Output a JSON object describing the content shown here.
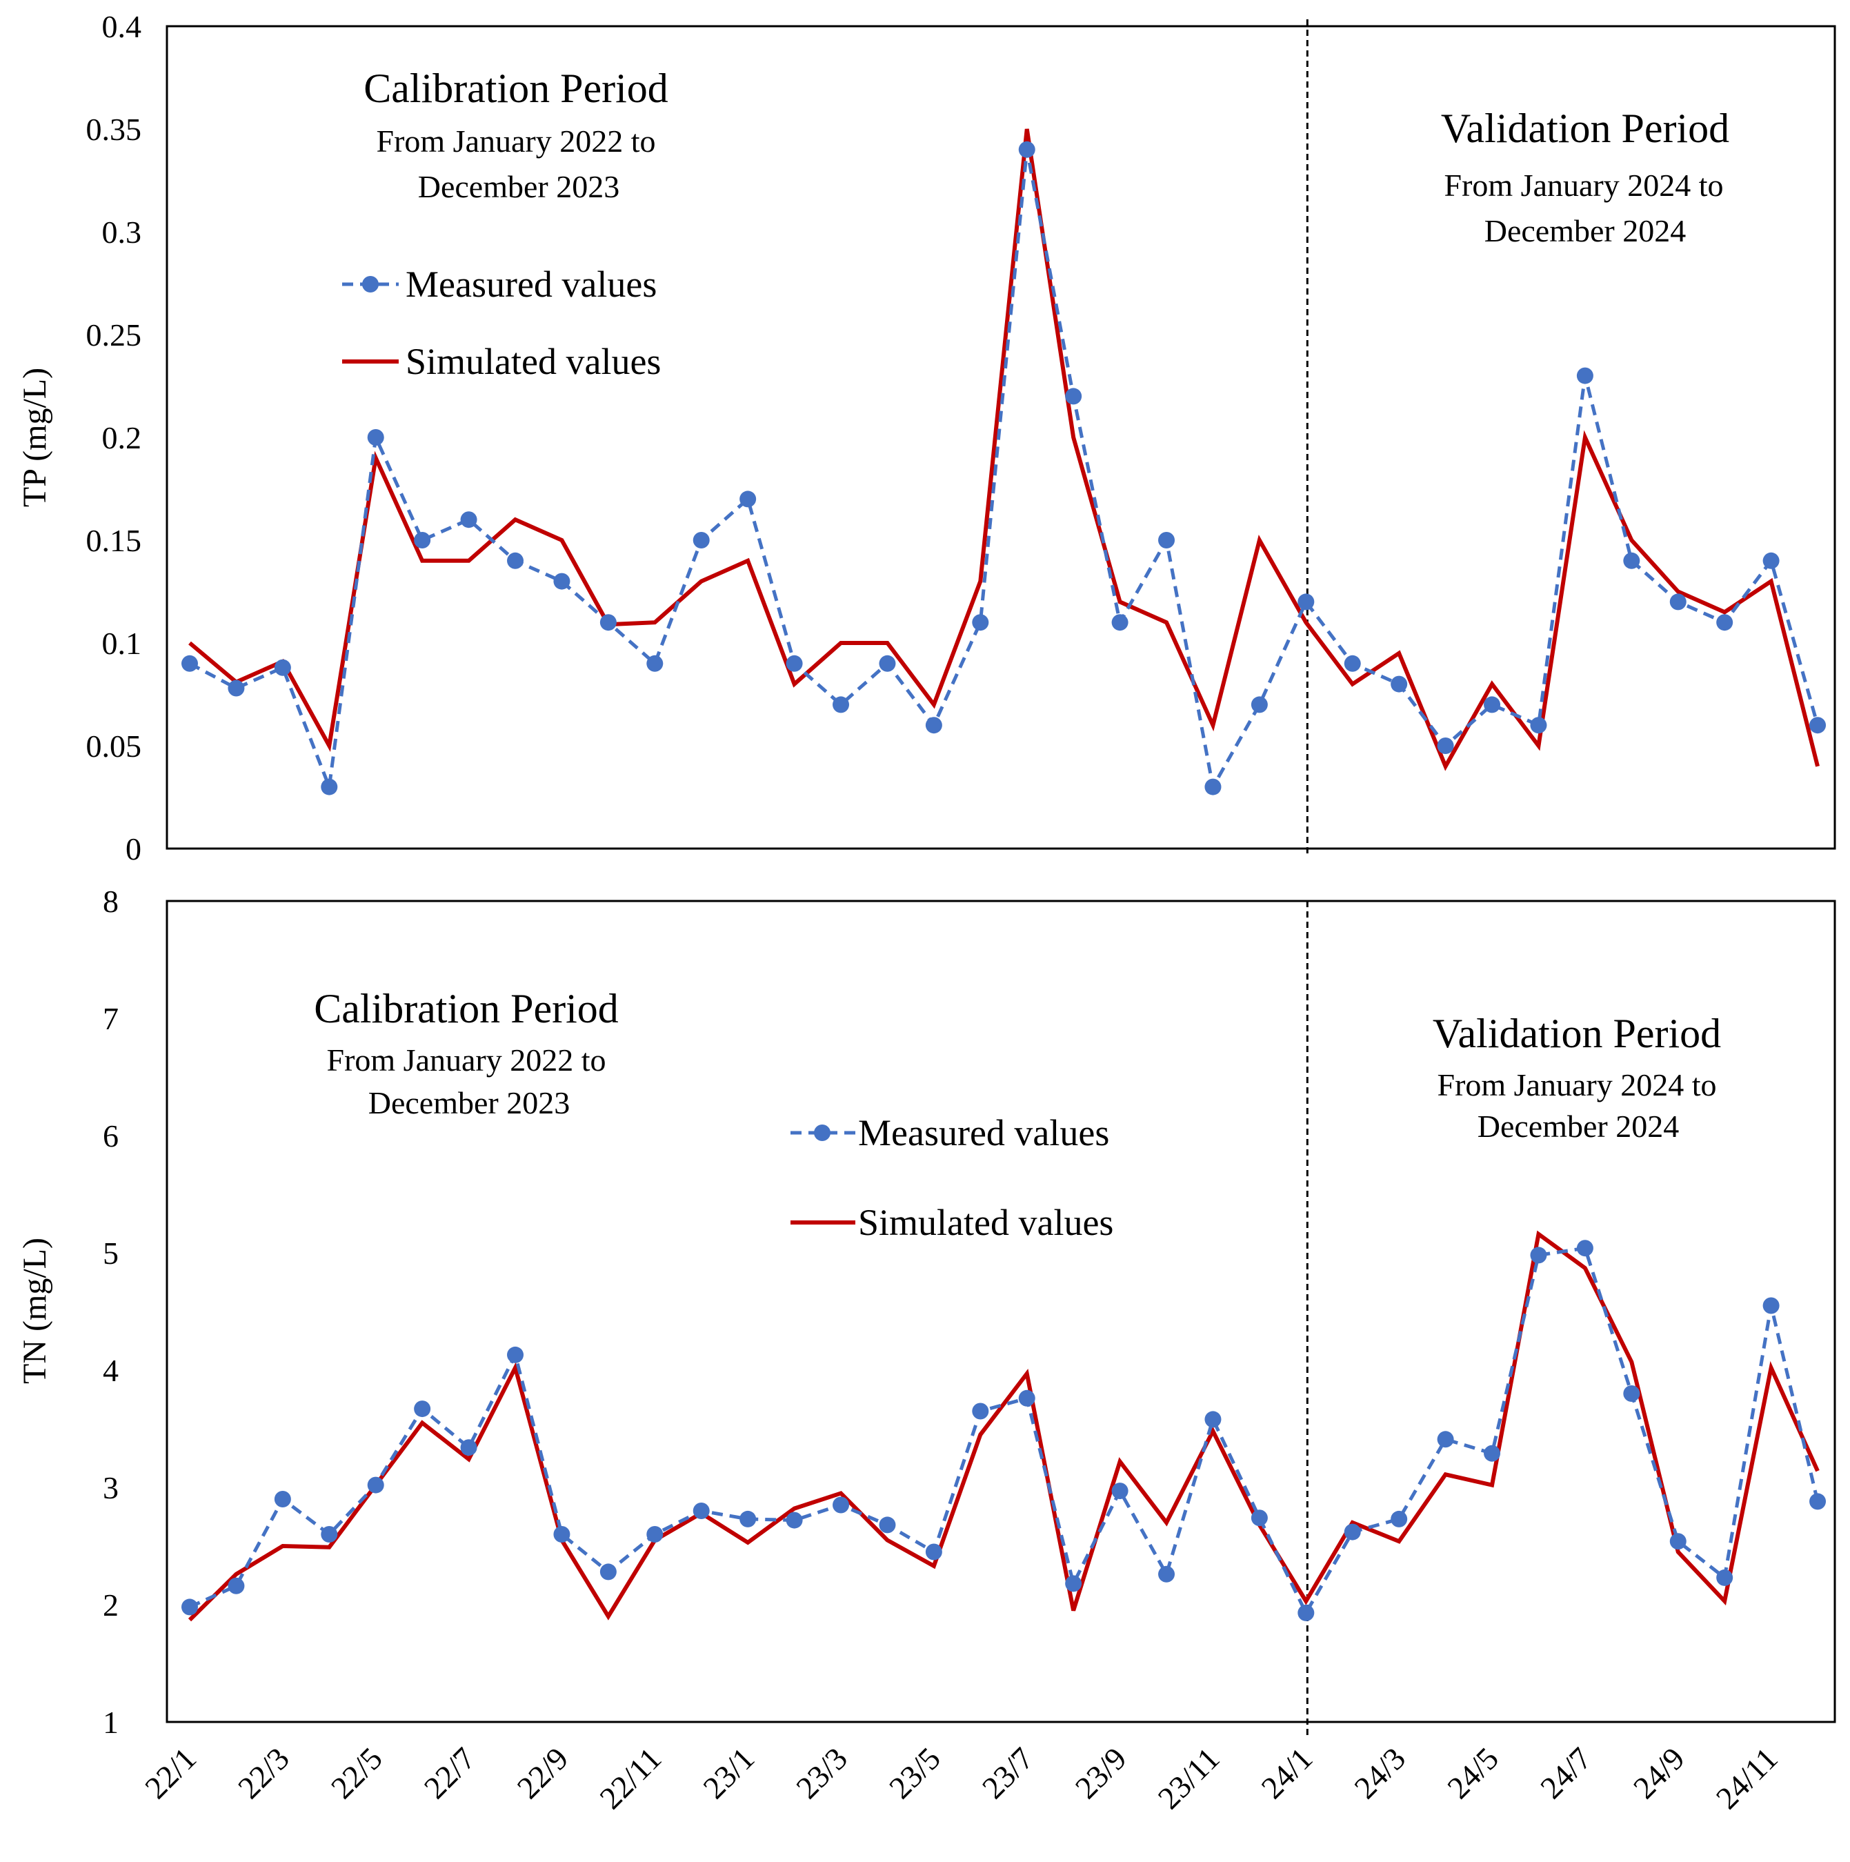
{
  "colors": {
    "measured": "#4472C4",
    "simulated": "#C00000",
    "axis": "#000000",
    "divider": "#000000"
  },
  "chart_data": [
    {
      "type": "line",
      "ylabel": "TP (mg/L)",
      "ylim": [
        0,
        0.4
      ],
      "yticks": [
        "0",
        "0.05",
        "0.1",
        "0.15",
        "0.2",
        "0.25",
        "0.3",
        "0.35",
        "0.4"
      ],
      "x": [
        "22/1",
        "22/2",
        "22/3",
        "22/4",
        "22/5",
        "22/6",
        "22/7",
        "22/8",
        "22/9",
        "22/10",
        "22/11",
        "22/12",
        "23/1",
        "23/2",
        "23/3",
        "23/4",
        "23/5",
        "23/6",
        "23/7",
        "23/8",
        "23/9",
        "23/10",
        "23/11",
        "23/12",
        "24/1",
        "24/2",
        "24/3",
        "24/4",
        "24/5",
        "24/6",
        "24/7",
        "24/8",
        "24/9",
        "24/10",
        "24/11",
        "24/12"
      ],
      "divider_at": "24/1",
      "series": [
        {
          "name": "Measured values",
          "style": "dashed-marker",
          "values": [
            0.09,
            0.078,
            0.088,
            0.03,
            0.2,
            0.15,
            0.16,
            0.14,
            0.13,
            0.11,
            0.09,
            0.15,
            0.17,
            0.09,
            0.07,
            0.09,
            0.06,
            0.11,
            0.34,
            0.22,
            0.11,
            0.15,
            0.03,
            0.07,
            0.12,
            0.09,
            0.08,
            0.05,
            0.07,
            0.06,
            0.23,
            0.14,
            0.12,
            0.11,
            0.14,
            0.06
          ]
        },
        {
          "name": "Simulated values",
          "style": "solid",
          "values": [
            0.1,
            0.081,
            0.091,
            0.05,
            0.19,
            0.14,
            0.14,
            0.16,
            0.15,
            0.109,
            0.11,
            0.13,
            0.14,
            0.08,
            0.1,
            0.1,
            0.07,
            0.13,
            0.35,
            0.2,
            0.12,
            0.11,
            0.06,
            0.15,
            0.11,
            0.08,
            0.095,
            0.04,
            0.08,
            0.05,
            0.2,
            0.15,
            0.125,
            0.115,
            0.13,
            0.04
          ]
        }
      ],
      "annotations": {
        "left_title": "Calibration Period",
        "left_sub1": "From January 2022 to",
        "left_sub2": "December 2023",
        "right_title": "Validation Period",
        "right_sub1": "From January 2024 to",
        "right_sub2": "December 2024"
      },
      "legend": [
        "Measured values",
        "Simulated values"
      ]
    },
    {
      "type": "line",
      "ylabel": "TN (mg/L)",
      "ylim": [
        1,
        8
      ],
      "yticks": [
        "1",
        "2",
        "3",
        "4",
        "5",
        "6",
        "7",
        "8"
      ],
      "x": [
        "22/1",
        "22/2",
        "22/3",
        "22/4",
        "22/5",
        "22/6",
        "22/7",
        "22/8",
        "22/9",
        "22/10",
        "22/11",
        "22/12",
        "23/1",
        "23/2",
        "23/3",
        "23/4",
        "23/5",
        "23/6",
        "23/7",
        "23/8",
        "23/9",
        "23/10",
        "23/11",
        "23/12",
        "24/1",
        "24/2",
        "24/3",
        "24/4",
        "24/5",
        "24/6",
        "24/7",
        "24/8",
        "24/9",
        "24/10",
        "24/11",
        "24/12"
      ],
      "xticks": [
        "22/1",
        "22/3",
        "22/5",
        "22/7",
        "22/9",
        "22/11",
        "23/1",
        "23/3",
        "23/5",
        "23/7",
        "23/9",
        "23/11",
        "24/1",
        "24/3",
        "24/5",
        "24/7",
        "24/9",
        "24/11"
      ],
      "divider_at": "24/1",
      "series": [
        {
          "name": "Measured values",
          "style": "dashed-marker",
          "values": [
            1.98,
            2.16,
            2.9,
            2.6,
            3.02,
            3.67,
            3.34,
            4.13,
            2.6,
            2.28,
            2.6,
            2.8,
            2.73,
            2.72,
            2.85,
            2.68,
            2.45,
            3.65,
            3.76,
            2.18,
            2.97,
            2.26,
            3.58,
            2.74,
            1.93,
            2.62,
            2.73,
            3.41,
            3.29,
            4.98,
            5.04,
            3.8,
            2.54,
            2.23,
            4.55,
            2.88
          ]
        },
        {
          "name": "Simulated values",
          "style": "solid",
          "values": [
            1.87,
            2.26,
            2.5,
            2.49,
            3.02,
            3.55,
            3.24,
            4.02,
            2.55,
            1.9,
            2.55,
            2.78,
            2.53,
            2.82,
            2.95,
            2.55,
            2.33,
            3.45,
            3.97,
            1.95,
            3.22,
            2.7,
            3.48,
            2.68,
            2.03,
            2.7,
            2.54,
            3.11,
            3.02,
            5.16,
            4.87,
            4.07,
            2.45,
            2.03,
            4.02,
            3.14
          ]
        }
      ],
      "annotations": {
        "left_title": "Calibration Period",
        "left_sub1": "From January 2022 to",
        "left_sub2": "December 2023",
        "right_title": "Validation Period",
        "right_sub1": "From January 2024 to",
        "right_sub2": "December 2024"
      },
      "legend": [
        "Measured values",
        "Simulated values"
      ]
    }
  ]
}
